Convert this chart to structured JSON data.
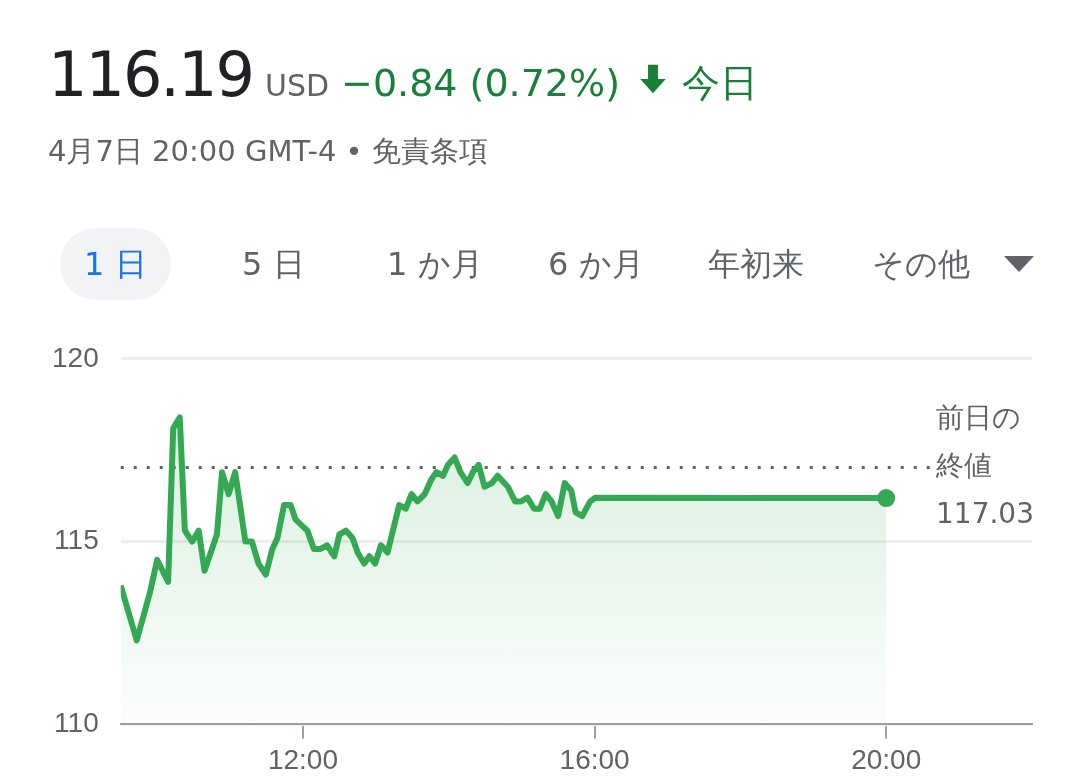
{
  "chart_data": {
    "type": "area",
    "title": "116.19",
    "subtitle": "4月7日 20:00 GMT-4 • 免責条項",
    "annotations": [
      "USD",
      "−0.84 (0.72%)",
      "今日",
      "1 日",
      "5 日",
      "1 か月",
      "6 か月",
      "年初来",
      "その他"
    ],
    "series": [
      {
        "color": "#34a853",
        "x": [
          9.5,
          9.72,
          9.9,
          10.0,
          10.15,
          10.22,
          10.31,
          10.38,
          10.48,
          10.57,
          10.65,
          10.82,
          10.89,
          10.98,
          11.07,
          11.21,
          11.3,
          11.39,
          11.49,
          11.58,
          11.65,
          11.74,
          11.83,
          11.9,
          12.06,
          12.15,
          12.24,
          12.33,
          12.43,
          12.5,
          12.59,
          12.68,
          12.75,
          12.84,
          12.91,
          12.99,
          13.07,
          13.16,
          13.32,
          13.41,
          13.49,
          13.57,
          13.67,
          13.76,
          13.83,
          13.92,
          13.99,
          14.08,
          14.16,
          14.26,
          14.33,
          14.41,
          14.49,
          14.59,
          14.67,
          14.81,
          14.91,
          14.99,
          15.08,
          15.17,
          15.25,
          15.33,
          15.41,
          15.5,
          15.59,
          15.68,
          15.74,
          15.83,
          15.94,
          16.01,
          20.0
        ],
        "values": [
          113.8,
          112.3,
          113.6,
          114.5,
          113.9,
          118.1,
          118.4,
          115.3,
          115.0,
          115.3,
          114.2,
          115.2,
          116.9,
          116.3,
          116.9,
          115.0,
          115.0,
          114.4,
          114.1,
          114.8,
          115.1,
          116.0,
          116.0,
          115.6,
          115.3,
          114.8,
          114.8,
          114.9,
          114.6,
          115.2,
          115.3,
          115.1,
          114.7,
          114.4,
          114.6,
          114.4,
          114.9,
          114.7,
          116.0,
          115.9,
          116.3,
          116.1,
          116.3,
          116.7,
          116.9,
          116.8,
          117.1,
          117.3,
          116.9,
          116.6,
          116.9,
          117.1,
          116.5,
          116.6,
          116.8,
          116.5,
          116.1,
          116.1,
          116.2,
          115.9,
          115.9,
          116.3,
          116.1,
          115.7,
          116.6,
          116.4,
          115.8,
          115.7,
          116.1,
          116.2,
          116.19
        ]
      }
    ],
    "xlim": [
      9.5,
      22
    ],
    "xticks": [
      {
        "value": 12,
        "label": "12:00"
      },
      {
        "value": 16,
        "label": "16:00"
      },
      {
        "value": 20,
        "label": "20:00"
      }
    ],
    "ylim": [
      110,
      120
    ],
    "yticks": [
      110,
      115,
      120
    ],
    "grid": "y",
    "ref_lines": [
      {
        "axis": "y",
        "value": 117.03,
        "label": "前日の終値\n117.03",
        "color": "#5f6368",
        "line_style": "dotted"
      }
    ]
  }
}
